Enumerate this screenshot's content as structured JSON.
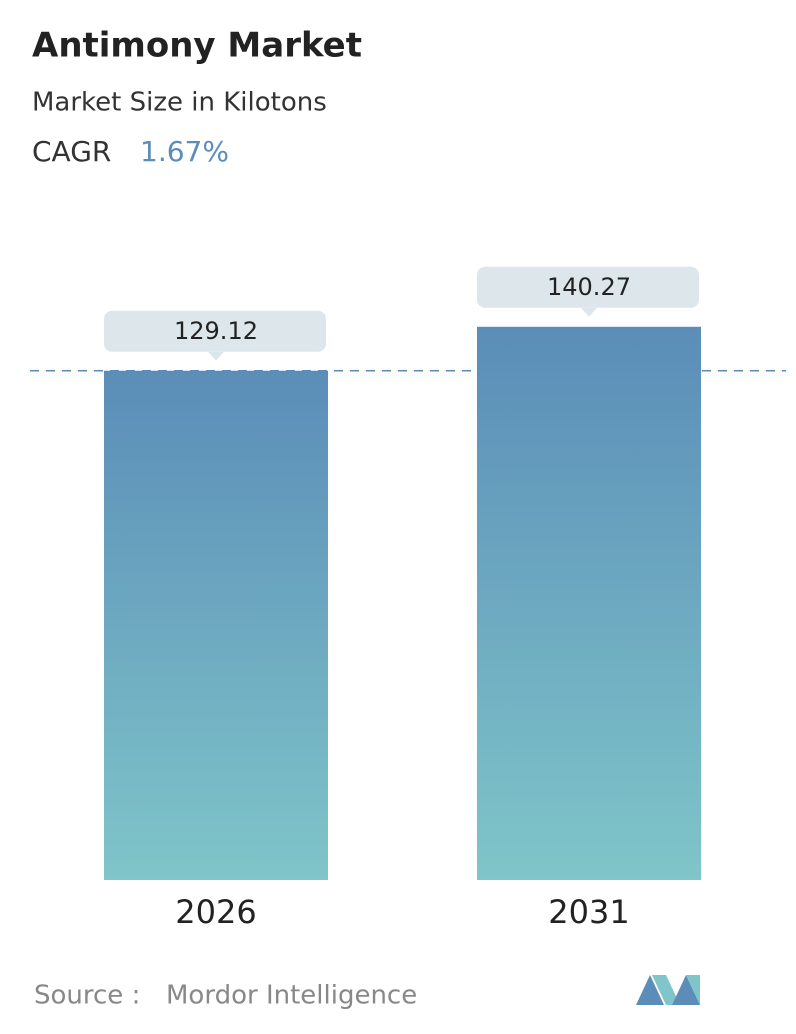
{
  "chart_data": {
    "type": "bar",
    "title": "Antimony Market",
    "subtitle": "Market Size in Kilotons",
    "cagr": {
      "label": "CAGR",
      "value": "1.67%"
    },
    "categories": [
      "2026",
      "2031"
    ],
    "values": [
      129.12,
      140.27
    ],
    "color_top": "#5b8db8",
    "color_bottom": "#7fc5c9",
    "source": {
      "label": "Source :",
      "value": "Mordor Intelligence"
    }
  }
}
